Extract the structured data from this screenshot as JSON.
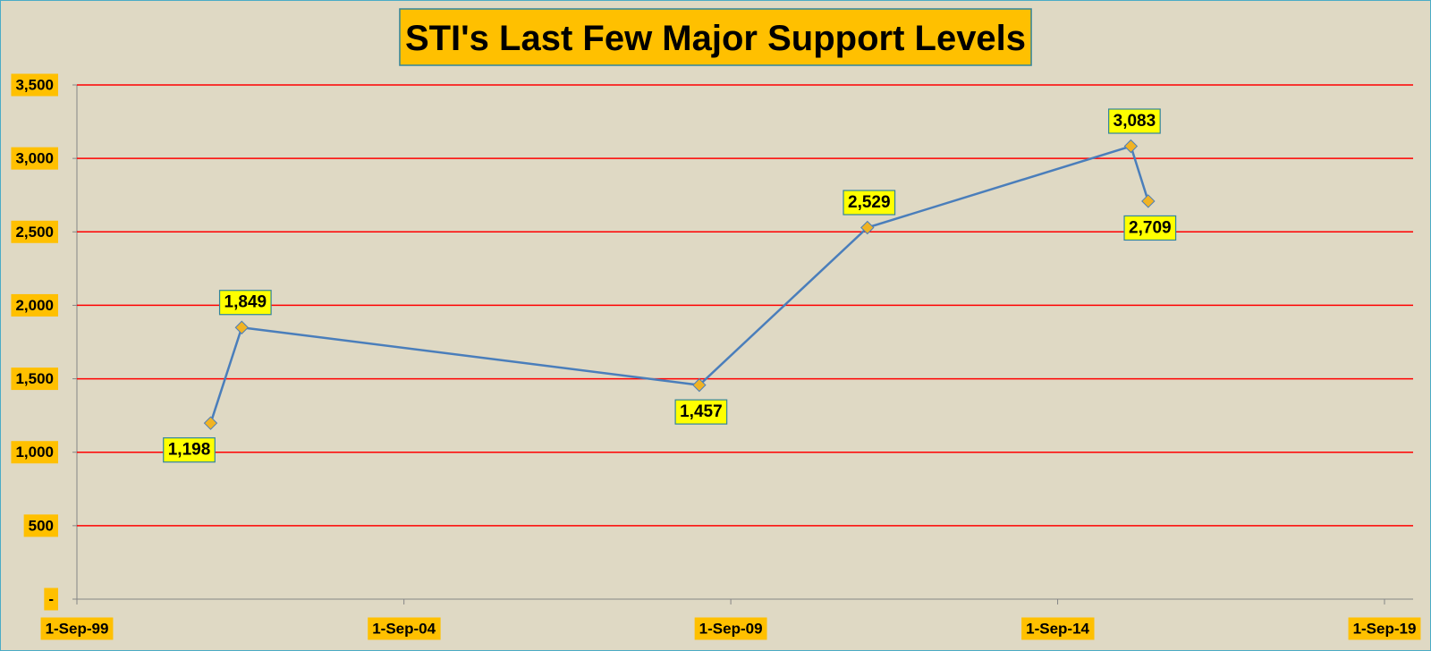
{
  "chart_data": {
    "type": "line",
    "title": "STI's Last Few Major Support Levels",
    "x": [
      "2001-09-17",
      "2002-03-10",
      "2009-03-09",
      "2011-10-04",
      "2015-10-15",
      "2016-01-20"
    ],
    "series": [
      {
        "name": "STI",
        "color": "#4a7ebb",
        "marker_color": "#f0b323",
        "values": [
          1198,
          1849,
          1457,
          2529,
          3083,
          2709
        ],
        "value_labels": [
          "1,198",
          "1,849",
          "1,457",
          "2,529",
          "3,083",
          "2,709"
        ]
      }
    ],
    "xlim": [
      "1999-09-01",
      "2019-09-01"
    ],
    "xticks": [
      {
        "value": "1999-09-01",
        "label": "1-Sep-99"
      },
      {
        "value": "2004-09-01",
        "label": "1-Sep-04"
      },
      {
        "value": "2009-09-01",
        "label": "1-Sep-09"
      },
      {
        "value": "2014-09-01",
        "label": "1-Sep-14"
      },
      {
        "value": "2019-09-01",
        "label": "1-Sep-19"
      }
    ],
    "ylim": [
      0,
      3500
    ],
    "yticks": [
      {
        "value": 0,
        "label": "-"
      },
      500,
      {
        "value": 1000,
        "label": "1,000"
      },
      {
        "value": 1500,
        "label": "1,500"
      },
      {
        "value": 2000,
        "label": "2,000"
      },
      {
        "value": 2500,
        "label": "2,500"
      },
      {
        "value": 3000,
        "label": "3,000"
      },
      {
        "value": 3500,
        "label": "3,500"
      }
    ],
    "grid": true,
    "grid_color": "#ff0000"
  }
}
